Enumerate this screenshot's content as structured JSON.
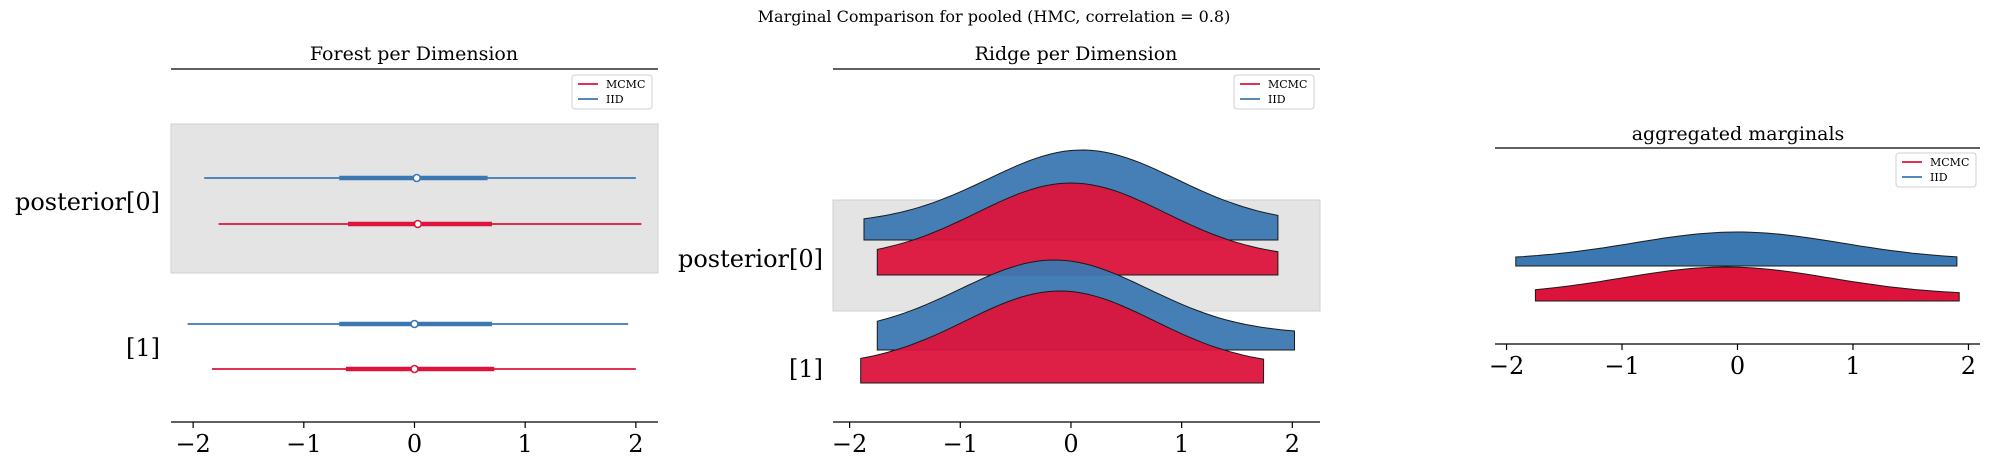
{
  "figure": {
    "suptitle": "Marginal Comparison for pooled (HMC, correlation = 0.8)"
  },
  "colors": {
    "mcmc": "#dc143c",
    "iid": "#3b78b1",
    "band": "#e4e4e4",
    "axis": "#000000"
  },
  "chart_data": [
    {
      "type": "forest",
      "title": "Forest per Dimension",
      "ylabels": [
        "posterior[0]",
        "[1]"
      ],
      "xticks": [
        -2,
        -1,
        0,
        1,
        2
      ],
      "xlim": [
        -2.2,
        2.2
      ],
      "legend": {
        "position": "top-right",
        "entries": [
          "MCMC",
          "IID"
        ]
      },
      "series": [
        {
          "name": "IID",
          "rows": [
            {
              "label": "posterior[0]",
              "hdi_low": -1.9,
              "hdi_high": 2.0,
              "iqr_low": -0.68,
              "iqr_high": 0.66,
              "center": 0.02
            },
            {
              "label": "[1]",
              "hdi_low": -2.05,
              "hdi_high": 1.93,
              "iqr_low": -0.68,
              "iqr_high": 0.7,
              "center": 0.0
            }
          ]
        },
        {
          "name": "MCMC",
          "rows": [
            {
              "label": "posterior[0]",
              "hdi_low": -1.77,
              "hdi_high": 2.05,
              "iqr_low": -0.6,
              "iqr_high": 0.7,
              "center": 0.03
            },
            {
              "label": "[1]",
              "hdi_low": -1.83,
              "hdi_high": 2.0,
              "iqr_low": -0.62,
              "iqr_high": 0.72,
              "center": 0.0
            }
          ]
        }
      ]
    },
    {
      "type": "ridge",
      "title": "Ridge per Dimension",
      "ylabels": [
        "posterior[0]",
        "[1]"
      ],
      "xticks": [
        -2,
        -1,
        0,
        1,
        2
      ],
      "xlim": [
        -2.15,
        2.25
      ],
      "legend": {
        "position": "top-right",
        "entries": [
          "MCMC",
          "IID"
        ]
      },
      "series": [
        {
          "name": "IID",
          "rows": [
            {
              "label": "posterior[0]",
              "xmin": -1.87,
              "xmax": 1.87,
              "peak": 0.1
            },
            {
              "label": "[1]",
              "xmin": -1.75,
              "xmax": 2.02,
              "peak": -0.15
            }
          ]
        },
        {
          "name": "MCMC",
          "rows": [
            {
              "label": "posterior[0]",
              "xmin": -1.75,
              "xmax": 1.87,
              "peak": 0.0
            },
            {
              "label": "[1]",
              "xmin": -1.9,
              "xmax": 1.74,
              "peak": -0.1
            }
          ]
        }
      ]
    },
    {
      "type": "area",
      "title": "aggregated marginals",
      "xticks": [
        -2,
        -1,
        0,
        1,
        2
      ],
      "xlim": [
        -2.1,
        2.1
      ],
      "legend": {
        "position": "top-right",
        "entries": [
          "MCMC",
          "IID"
        ]
      },
      "series": [
        {
          "name": "IID",
          "xmin": -1.92,
          "xmax": 1.9,
          "peak": 0.0
        },
        {
          "name": "MCMC",
          "xmin": -1.75,
          "xmax": 1.92,
          "peak": -0.1
        }
      ]
    }
  ]
}
